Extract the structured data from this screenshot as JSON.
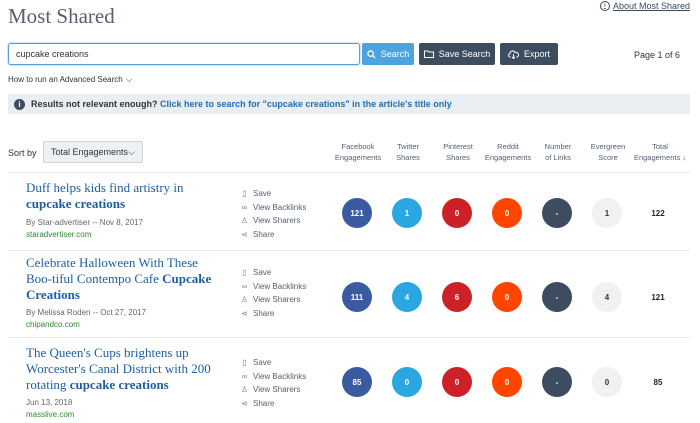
{
  "header": {
    "title": "Most Shared",
    "about_link": "About Most Shared",
    "info_glyph": "i"
  },
  "search": {
    "value": "cupcake creations",
    "search_button": "Search",
    "save_button": "Save Search",
    "export_button": "Export",
    "page_info": "Page 1 of 6",
    "advanced": "How to run an Advanced Search",
    "chevron": "⌵"
  },
  "notice": {
    "icon": "i",
    "text": "Results not relevant enough?",
    "link": "Click here to search for \"cupcake creations\" in the article's title only"
  },
  "sort": {
    "label": "Sort by",
    "value": "Total Engagements",
    "chevron": "⌵"
  },
  "columns": [
    {
      "line1": "Facebook",
      "line2": "Engagements"
    },
    {
      "line1": "Twitter",
      "line2": "Shares"
    },
    {
      "line1": "Pinterest",
      "line2": "Shares"
    },
    {
      "line1": "Reddit",
      "line2": "Engagements"
    },
    {
      "line1": "Number",
      "line2": "of Links"
    },
    {
      "line1": "Evergreen",
      "line2": "Score"
    },
    {
      "line1": "Total",
      "line2": "Engagements ↓"
    }
  ],
  "action_labels": {
    "save": "Save",
    "backlinks": "View Backlinks",
    "sharers": "View Sharers",
    "share": "Share"
  },
  "metric_colors": {
    "facebook": "#3a5ba0",
    "twitter": "#2aa7e0",
    "pinterest": "#cc2127",
    "reddit": "#ff4500",
    "links": "#3d4c5e"
  },
  "results": [
    {
      "title_plain": "Duff helps kids find artistry in ",
      "title_bold": "cupcake creations",
      "meta": "By Star-advertiser -- Nov 8, 2017",
      "domain": "staradvertiser.com",
      "facebook": "121",
      "twitter": "1",
      "pinterest": "0",
      "reddit": "0",
      "links": "-",
      "evergreen": "1",
      "total": "122"
    },
    {
      "title_plain": "Celebrate Halloween With These Boo-tiful Contempo Cafe ",
      "title_bold": "Cupcake Creations",
      "meta": "By Melissa Roden -- Oct 27, 2017",
      "domain": "chipandco.com",
      "facebook": "111",
      "twitter": "4",
      "pinterest": "6",
      "reddit": "0",
      "links": "-",
      "evergreen": "4",
      "total": "121"
    },
    {
      "title_plain": "The Queen's Cups brightens up Worcester's Canal District with 200 rotating ",
      "title_bold": "cupcake creations",
      "meta": "Jun 13, 2018",
      "domain": "masslive.com",
      "facebook": "85",
      "twitter": "0",
      "pinterest": "0",
      "reddit": "0",
      "links": "-",
      "evergreen": "0",
      "total": "85"
    }
  ]
}
